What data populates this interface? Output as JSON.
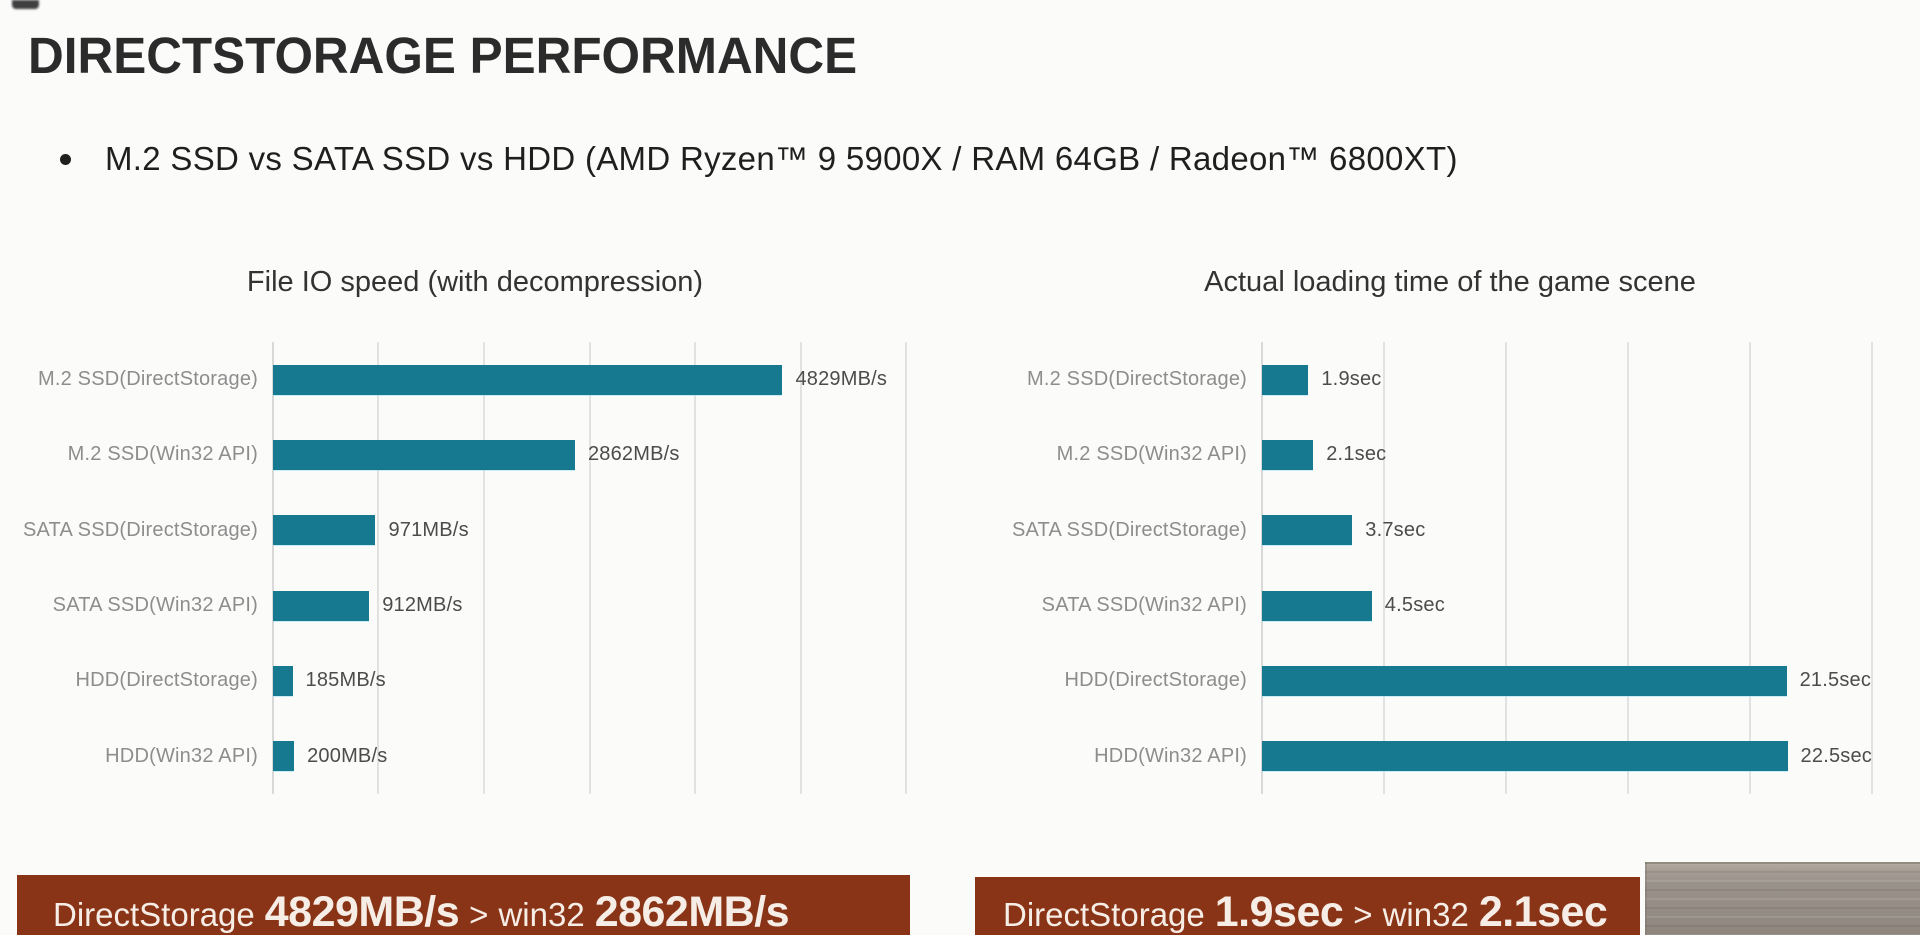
{
  "header": {
    "title": "DIRECTSTORAGE PERFORMANCE",
    "subtitle": "M.2 SSD vs SATA SSD vs HDD (AMD Ryzen™ 9 5900X / RAM 64GB / Radeon™ 6800XT)"
  },
  "colors": {
    "bar": "#17798f",
    "banner_background": "#8a3417",
    "banner_text": "#f6eee6",
    "gridline": "#e2e2e2",
    "category_label": "#8d8d8d",
    "value_label": "#4c4c4c"
  },
  "chart_data": [
    {
      "type": "bar",
      "orientation": "horizontal",
      "title": "File IO speed (with decompression)",
      "categories": [
        "M.2 SSD(DirectStorage)",
        "M.2 SSD(Win32 API)",
        "SATA SSD(DirectStorage)",
        "SATA SSD(Win32 API)",
        "HDD(DirectStorage)",
        "HDD(Win32 API)"
      ],
      "values": [
        4829,
        2862,
        971,
        912,
        185,
        200
      ],
      "value_labels": [
        "4829MB/s",
        "2862MB/s",
        "971MB/s",
        "912MB/s",
        "185MB/s",
        "200MB/s"
      ],
      "unit": "MB/s",
      "xlim": [
        0,
        6000
      ],
      "gridline_step": 1000,
      "grid": true,
      "legend": false,
      "bar_color": "#17798f"
    },
    {
      "type": "bar",
      "orientation": "horizontal",
      "title": "Actual loading time of the game scene",
      "categories": [
        "M.2 SSD(DirectStorage)",
        "M.2 SSD(Win32 API)",
        "SATA SSD(DirectStorage)",
        "SATA SSD(Win32 API)",
        "HDD(DirectStorage)",
        "HDD(Win32 API)"
      ],
      "values": [
        1.9,
        2.1,
        3.7,
        4.5,
        21.5,
        22.5
      ],
      "value_labels": [
        "1.9sec",
        "2.1sec",
        "3.7sec",
        "4.5sec",
        "21.5sec",
        "22.5sec"
      ],
      "unit": "sec",
      "xlim": [
        0,
        25
      ],
      "gridline_step": 5,
      "grid": true,
      "legend": false,
      "bar_color": "#17798f"
    }
  ],
  "banners": [
    {
      "prefix": "DirectStorage",
      "value_primary": "4829MB/s",
      "comparator": ">",
      "secondary_label": "win32",
      "value_secondary": "2862MB/s"
    },
    {
      "prefix": "DirectStorage",
      "value_primary": "1.9sec",
      "comparator": ">",
      "secondary_label": "win32",
      "value_secondary": "2.1sec"
    }
  ]
}
